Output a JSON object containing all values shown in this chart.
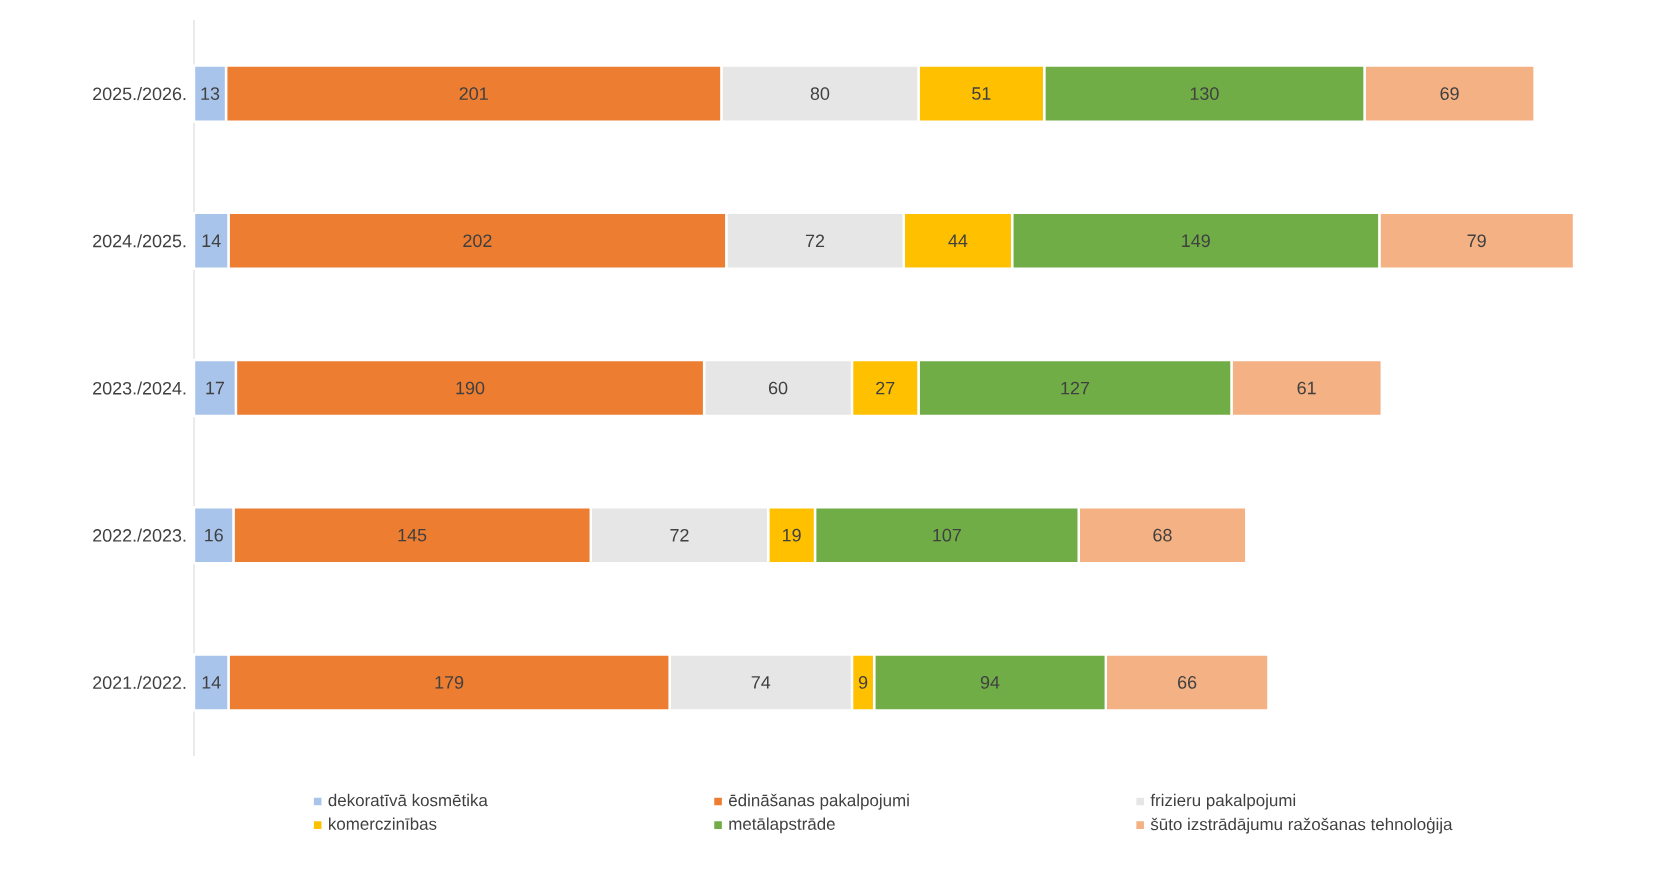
{
  "chart_data": {
    "type": "bar",
    "orientation": "horizontal",
    "stacked": true,
    "data_labels": true,
    "legend": "bottom",
    "categories": [
      "2025./2026.",
      "2024./2025.",
      "2023./2024.",
      "2022./2023.",
      "2021./2022."
    ],
    "series": [
      {
        "name": "dekoratīvā kosmētika",
        "color": "#a9c4eb",
        "values": [
          13,
          14,
          17,
          16,
          14
        ]
      },
      {
        "name": "ēdināšanas pakalpojumi",
        "color": "#ed7d31",
        "values": [
          201,
          202,
          190,
          145,
          179
        ]
      },
      {
        "name": "frizieru pakalpojumi",
        "color": "#e7e6e6",
        "values": [
          80,
          72,
          60,
          72,
          74
        ]
      },
      {
        "name": "komerczinības",
        "color": "#ffc000",
        "values": [
          51,
          44,
          27,
          19,
          9
        ]
      },
      {
        "name": "metālapstrāde",
        "color": "#70ad47",
        "values": [
          130,
          149,
          127,
          107,
          94
        ]
      },
      {
        "name": "šūto izstrādājumu ražošanas tehnoloģija",
        "color": "#f4b183",
        "values": [
          69,
          79,
          61,
          68,
          66
        ]
      }
    ]
  }
}
